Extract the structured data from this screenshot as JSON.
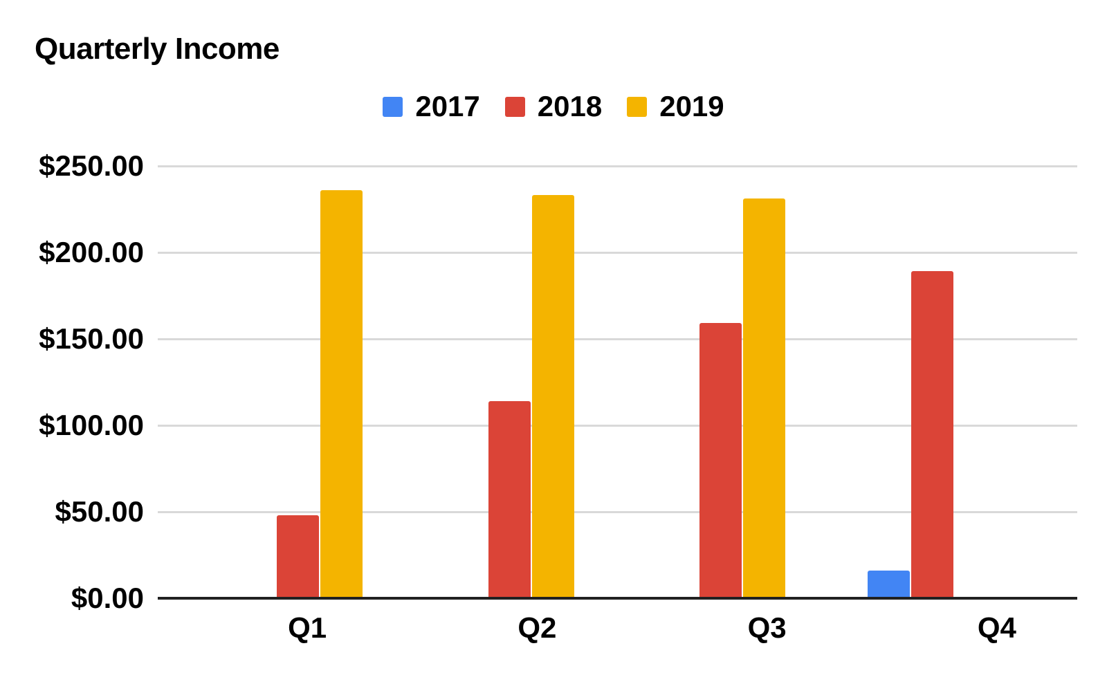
{
  "chart_data": {
    "type": "bar",
    "title": "Quarterly Income",
    "categories": [
      "Q1",
      "Q2",
      "Q3",
      "Q4"
    ],
    "series": [
      {
        "name": "2017",
        "color": "#4285F4",
        "values": [
          0,
          0,
          0,
          16
        ]
      },
      {
        "name": "2018",
        "color": "#DB4437",
        "values": [
          48,
          114,
          159,
          189
        ]
      },
      {
        "name": "2019",
        "color": "#F4B400",
        "values": [
          236,
          233,
          231,
          0
        ]
      }
    ],
    "xlabel": "",
    "ylabel": "",
    "ylim": [
      0,
      250
    ],
    "y_tick_interval": 50,
    "y_tick_labels": [
      "$0.00",
      "$50.00",
      "$100.00",
      "$150.00",
      "$200.00",
      "$250.00"
    ],
    "grid": "horizontal",
    "legend_position": "top-center",
    "colors": {
      "background": "#FFFFFF",
      "gridline": "#D9D9D9",
      "axis_line": "#212121",
      "text": "#000000"
    }
  }
}
